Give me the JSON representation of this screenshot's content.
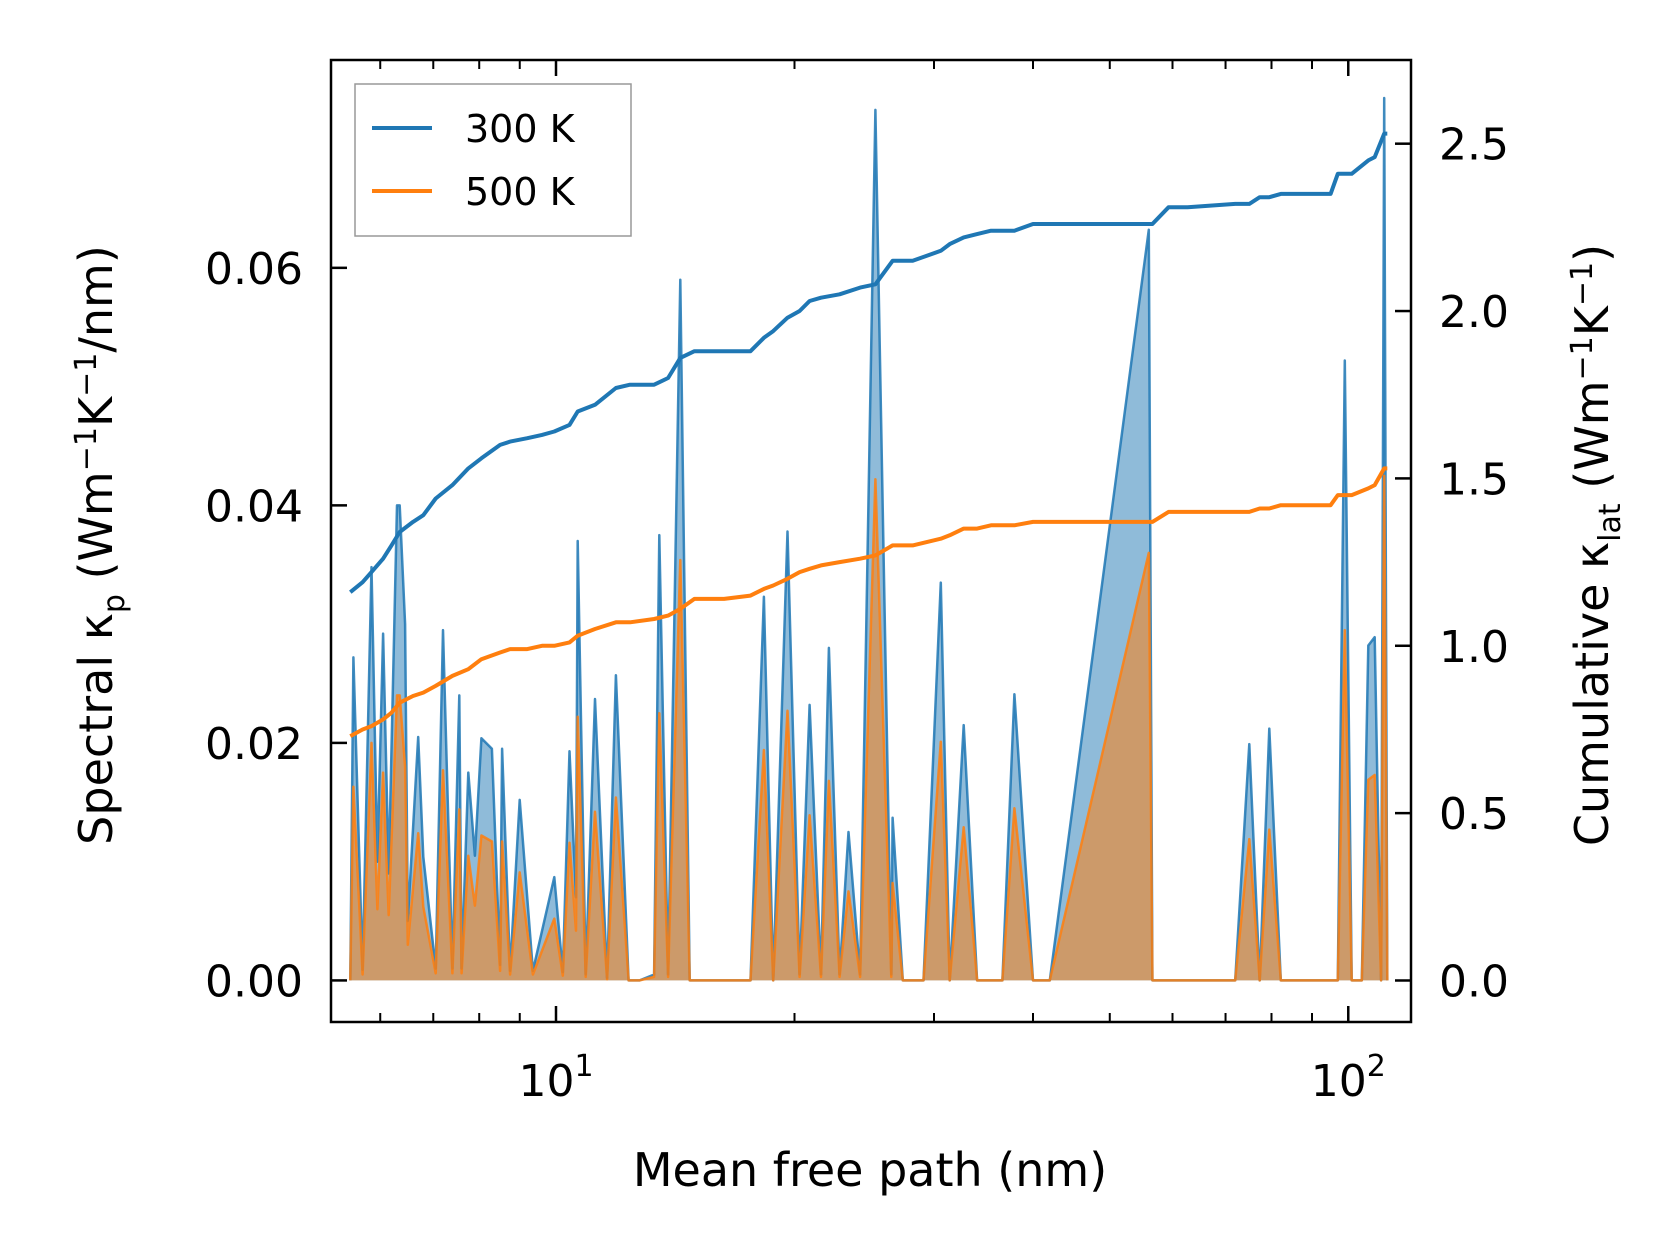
{
  "chart_data": {
    "type": "line",
    "xscale": "log",
    "xlim": [
      5.2,
      120
    ],
    "xlabel": "Mean free path (nm)",
    "x_ticks": [
      {
        "value": 10,
        "base": "10",
        "exp": "1"
      },
      {
        "value": 100,
        "base": "10",
        "exp": "2"
      }
    ],
    "y_left": {
      "label_parts": {
        "a": "Spectral κ",
        "sub": "p",
        "b": " (Wm",
        "sup1": "−1",
        "c": "K",
        "sup2": "−1",
        "d": "/nm)"
      },
      "ylim": [
        -0.0035,
        0.0775
      ],
      "ticks": [
        "0.00",
        "0.02",
        "0.04",
        "0.06"
      ]
    },
    "y_right": {
      "label_parts": {
        "a": "Cumulative κ",
        "sub": "lat",
        "b": " (Wm",
        "sup1": "−1",
        "c": "K",
        "sup2": "−1",
        "d": ")"
      },
      "ylim": [
        -0.124,
        2.75
      ],
      "ticks": [
        "0.0",
        "0.5",
        "1.0",
        "1.5",
        "2.0",
        "2.5"
      ]
    },
    "colors": {
      "s300": "#1f77b4",
      "s500": "#ff7f0e"
    },
    "legend": [
      "300 K",
      "500 K"
    ],
    "legend_position": "upper-left",
    "spectral_series": [
      {
        "name": "300 K",
        "x": [
          5.5,
          5.55,
          5.7,
          5.85,
          5.95,
          6.05,
          6.15,
          6.3,
          6.35,
          6.45,
          6.5,
          6.7,
          6.8,
          7.05,
          7.2,
          7.4,
          7.55,
          7.6,
          7.75,
          7.9,
          8.05,
          8.3,
          8.5,
          8.55,
          8.75,
          9.0,
          9.35,
          9.95,
          10.2,
          10.4,
          10.6,
          10.65,
          10.9,
          11.2,
          11.6,
          11.9,
          12.35,
          12.75,
          13.3,
          13.5,
          13.85,
          14.35,
          14.75,
          14.95,
          15.2,
          15.8,
          16.3,
          17.6,
          18.3,
          18.8,
          19.6,
          20.3,
          20.9,
          21.6,
          22.1,
          22.8,
          23.4,
          24.2,
          25.3,
          26.5,
          26.6,
          27.4,
          28.2,
          29.1,
          30.6,
          31.4,
          32.7,
          34.0,
          35.4,
          36.6,
          37.9,
          40.0,
          42.0,
          56.0,
          56.6,
          59.3,
          62.7,
          72.0,
          75.0,
          77.3,
          79.5,
          82.2,
          95.0,
          97.0,
          99.0,
          101.0,
          104.0,
          106.0,
          108.0,
          110.0,
          111.0,
          112.0
        ],
        "y": [
          0,
          0.0272,
          0.0009,
          0.0348,
          0.01,
          0.0292,
          0.009,
          0.04,
          0.04,
          0.03,
          0.005,
          0.0205,
          0.0104,
          0.001,
          0.0295,
          0.001,
          0.024,
          0.001,
          0.0175,
          0.0105,
          0.0204,
          0.0195,
          0.0013,
          0.0195,
          0.0008,
          0.0152,
          0.0008,
          0.0087,
          0.0007,
          0.0193,
          0.007,
          0.037,
          0.0005,
          0.0237,
          0.0002,
          0.0257,
          0,
          0,
          0.0005,
          0.0375,
          0.0005,
          0.059,
          0,
          0,
          0,
          0,
          0,
          0,
          0.0323,
          0,
          0.0378,
          0.0005,
          0.0232,
          0.0005,
          0.028,
          0.0005,
          0.0125,
          0.0005,
          0.0733,
          0.0005,
          0.0137,
          0,
          0,
          0,
          0.0335,
          0,
          0.0215,
          0,
          0,
          0,
          0.0241,
          0,
          0,
          0.0632,
          0,
          0,
          0,
          0,
          0.0199,
          0,
          0.0212,
          0,
          0,
          0,
          0.0522,
          0,
          0,
          0.0282,
          0.0289,
          0,
          0.0743,
          0
        ]
      },
      {
        "name": "500 K",
        "x": [
          5.5,
          5.55,
          5.7,
          5.85,
          5.95,
          6.05,
          6.15,
          6.3,
          6.35,
          6.45,
          6.5,
          6.7,
          6.8,
          7.05,
          7.2,
          7.4,
          7.55,
          7.6,
          7.75,
          7.9,
          8.05,
          8.3,
          8.5,
          8.55,
          8.75,
          9.0,
          9.35,
          9.95,
          10.2,
          10.4,
          10.6,
          10.65,
          10.9,
          11.2,
          11.6,
          11.9,
          12.35,
          12.75,
          13.3,
          13.5,
          13.85,
          14.35,
          14.75,
          14.95,
          15.2,
          15.8,
          16.3,
          17.6,
          18.3,
          18.8,
          19.6,
          20.3,
          20.9,
          21.6,
          22.1,
          22.8,
          23.4,
          24.2,
          25.3,
          26.5,
          26.6,
          27.4,
          28.2,
          29.1,
          30.6,
          31.4,
          32.7,
          34.0,
          35.4,
          36.6,
          37.9,
          40.0,
          42.0,
          56.0,
          56.6,
          59.3,
          62.7,
          72.0,
          75.0,
          77.3,
          79.5,
          82.2,
          95.0,
          97.0,
          99.0,
          101.0,
          104.0,
          106.0,
          108.0,
          110.0,
          111.0,
          112.0
        ],
        "y": [
          0,
          0.0163,
          0.0005,
          0.02,
          0.006,
          0.0175,
          0.0055,
          0.024,
          0.024,
          0.018,
          0.003,
          0.0124,
          0.0062,
          0.0006,
          0.0177,
          0.0006,
          0.0144,
          0.0006,
          0.0105,
          0.0063,
          0.0122,
          0.0117,
          0.0008,
          0.0117,
          0.0005,
          0.0091,
          0.0005,
          0.0052,
          0.0004,
          0.0116,
          0.0042,
          0.0222,
          0.0003,
          0.0142,
          0.0001,
          0.0154,
          0,
          0,
          0.0003,
          0.0225,
          0.0003,
          0.0354,
          0,
          0,
          0,
          0,
          0,
          0,
          0.0194,
          0,
          0.0227,
          0.0003,
          0.0139,
          0.0003,
          0.0168,
          0.0003,
          0.0075,
          0.0003,
          0.0422,
          0.0003,
          0.0082,
          0,
          0,
          0,
          0.0201,
          0,
          0.0129,
          0,
          0,
          0,
          0.0145,
          0,
          0,
          0.036,
          0,
          0,
          0,
          0,
          0.0119,
          0,
          0.0127,
          0,
          0,
          0,
          0.0295,
          0,
          0,
          0.0169,
          0.0173,
          0,
          0.0425,
          0
        ]
      }
    ],
    "cumulative_series": [
      {
        "name": "300 K",
        "x": [
          5.5,
          5.7,
          5.85,
          6.05,
          6.2,
          6.35,
          6.6,
          6.8,
          7.05,
          7.4,
          7.75,
          8.05,
          8.5,
          8.75,
          9.2,
          9.6,
          9.95,
          10.4,
          10.65,
          11.2,
          11.9,
          12.4,
          13.3,
          13.85,
          14.35,
          14.95,
          16.3,
          17.6,
          18.3,
          18.8,
          19.6,
          20.3,
          20.9,
          21.6,
          22.8,
          24.2,
          25.3,
          26.6,
          28.2,
          30.6,
          31.4,
          32.7,
          34.0,
          35.4,
          37.9,
          40.0,
          42.0,
          56.0,
          56.6,
          59.3,
          62.7,
          72.0,
          75.0,
          77.3,
          79.5,
          82.2,
          95.0,
          97.0,
          101.0,
          106.0,
          108.0,
          111.0,
          112.0
        ],
        "y": [
          1.16,
          1.19,
          1.22,
          1.26,
          1.3,
          1.34,
          1.37,
          1.39,
          1.44,
          1.48,
          1.53,
          1.56,
          1.6,
          1.61,
          1.62,
          1.63,
          1.64,
          1.66,
          1.7,
          1.72,
          1.77,
          1.78,
          1.78,
          1.8,
          1.86,
          1.88,
          1.88,
          1.88,
          1.92,
          1.94,
          1.98,
          2.0,
          2.03,
          2.04,
          2.05,
          2.07,
          2.08,
          2.15,
          2.15,
          2.18,
          2.2,
          2.22,
          2.23,
          2.24,
          2.24,
          2.26,
          2.26,
          2.26,
          2.26,
          2.31,
          2.31,
          2.32,
          2.32,
          2.34,
          2.34,
          2.35,
          2.35,
          2.41,
          2.41,
          2.45,
          2.46,
          2.53,
          2.53
        ]
      },
      {
        "name": "500 K",
        "x": [
          5.5,
          5.7,
          5.85,
          6.05,
          6.2,
          6.35,
          6.6,
          6.8,
          7.05,
          7.4,
          7.75,
          8.05,
          8.5,
          8.75,
          9.2,
          9.6,
          9.95,
          10.4,
          10.65,
          11.2,
          11.9,
          12.4,
          13.3,
          13.85,
          14.35,
          14.95,
          16.3,
          17.6,
          18.3,
          18.8,
          19.6,
          20.3,
          20.9,
          21.6,
          22.8,
          24.2,
          25.3,
          26.6,
          28.2,
          30.6,
          31.4,
          32.7,
          34.0,
          35.4,
          37.9,
          40.0,
          42.0,
          56.0,
          56.6,
          59.3,
          62.7,
          72.0,
          75.0,
          77.3,
          79.5,
          82.2,
          95.0,
          97.0,
          101.0,
          106.0,
          108.0,
          111.0,
          112.0
        ],
        "y": [
          0.73,
          0.75,
          0.76,
          0.78,
          0.8,
          0.83,
          0.85,
          0.86,
          0.88,
          0.91,
          0.93,
          0.96,
          0.98,
          0.99,
          0.99,
          1.0,
          1.0,
          1.01,
          1.03,
          1.05,
          1.07,
          1.07,
          1.08,
          1.09,
          1.11,
          1.14,
          1.14,
          1.15,
          1.17,
          1.18,
          1.2,
          1.22,
          1.23,
          1.24,
          1.25,
          1.26,
          1.27,
          1.3,
          1.3,
          1.32,
          1.33,
          1.35,
          1.35,
          1.36,
          1.36,
          1.37,
          1.37,
          1.37,
          1.37,
          1.4,
          1.4,
          1.4,
          1.4,
          1.41,
          1.41,
          1.42,
          1.42,
          1.45,
          1.45,
          1.47,
          1.48,
          1.53,
          1.53
        ]
      }
    ]
  }
}
